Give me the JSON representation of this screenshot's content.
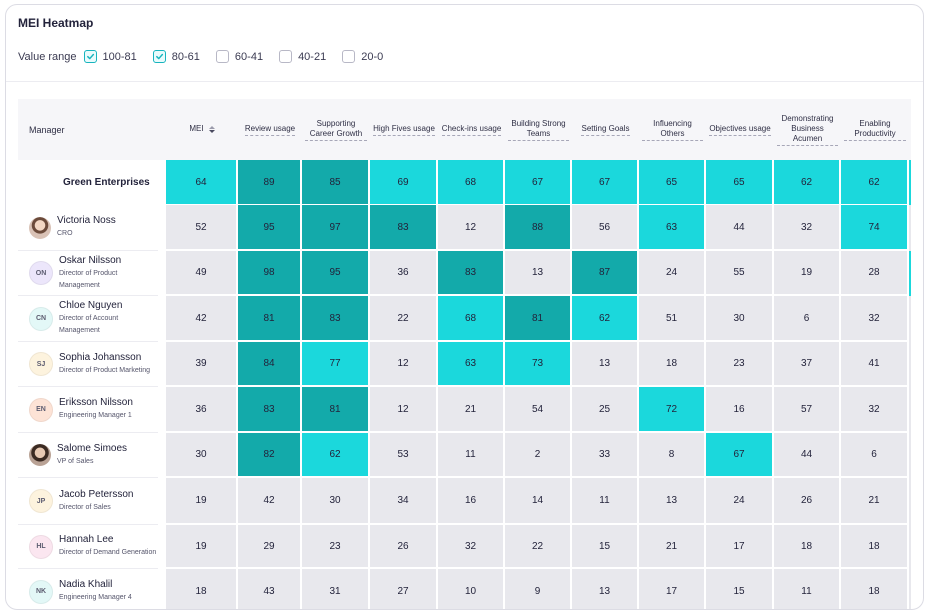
{
  "title": "MEI Heatmap",
  "filters": {
    "label": "Value range",
    "options": [
      {
        "label": "100-81",
        "checked": true
      },
      {
        "label": "80-61",
        "checked": true
      },
      {
        "label": "60-41",
        "checked": false
      },
      {
        "label": "40-21",
        "checked": false
      },
      {
        "label": "20-0",
        "checked": false
      }
    ]
  },
  "colors": {
    "low": "#e8e8ed",
    "mid": "#1bd8dc",
    "high": "#13aaaa",
    "checkbox_accent": "#17b4be"
  },
  "table": {
    "manager_header": "Manager",
    "columns": [
      "MEI",
      "Review usage",
      "Supporting Career Growth",
      "High Fives usage",
      "Check-ins usage",
      "Building Strong Teams",
      "Setting Goals",
      "Influencing Others",
      "Objectives usage",
      "Demonstrating Business Acumen",
      "Enabling Productivity"
    ],
    "rows": [
      {
        "name": "Green Enterprises",
        "role": "",
        "initials": "",
        "avatar": "none",
        "avatar_color": "",
        "values": [
          64,
          89,
          85,
          69,
          68,
          67,
          67,
          65,
          65,
          62,
          62
        ],
        "edge": "mid"
      },
      {
        "name": "Victoria Noss",
        "role": "CRO",
        "initials": "",
        "avatar": "photo",
        "avatar_color": "",
        "values": [
          52,
          95,
          97,
          83,
          12,
          88,
          56,
          63,
          44,
          32,
          74
        ],
        "edge": "low"
      },
      {
        "name": "Oskar Nilsson",
        "role": "Director of Product Management",
        "initials": "ON",
        "avatar": "initials",
        "avatar_color": "#ece6fb",
        "values": [
          49,
          98,
          95,
          36,
          83,
          13,
          87,
          24,
          55,
          19,
          28
        ],
        "edge": "mid"
      },
      {
        "name": "Chloe Nguyen",
        "role": "Director of Account Management",
        "initials": "CN",
        "avatar": "initials",
        "avatar_color": "#e3f8f7",
        "values": [
          42,
          81,
          83,
          22,
          68,
          81,
          62,
          51,
          30,
          6,
          32
        ],
        "edge": "low"
      },
      {
        "name": "Sophia Johansson",
        "role": "Director of Product Marketing",
        "initials": "SJ",
        "avatar": "initials",
        "avatar_color": "#fdf3de",
        "values": [
          39,
          84,
          77,
          12,
          63,
          73,
          13,
          18,
          23,
          37,
          41
        ],
        "edge": "low"
      },
      {
        "name": "Eriksson Nilsson",
        "role": "Engineering Manager 1",
        "initials": "EN",
        "avatar": "initials",
        "avatar_color": "#fde3d6",
        "values": [
          36,
          83,
          81,
          12,
          21,
          54,
          25,
          72,
          16,
          57,
          32
        ],
        "edge": "low"
      },
      {
        "name": "Salome Simoes",
        "role": "VP of Sales",
        "initials": "",
        "avatar": "photo2",
        "avatar_color": "",
        "values": [
          30,
          82,
          62,
          53,
          11,
          2,
          33,
          8,
          67,
          44,
          6
        ],
        "edge": "low"
      },
      {
        "name": "Jacob Petersson",
        "role": "Director of Sales",
        "initials": "JP",
        "avatar": "initials",
        "avatar_color": "#fdf3de",
        "values": [
          19,
          42,
          30,
          34,
          16,
          14,
          11,
          13,
          24,
          26,
          21
        ],
        "edge": "low"
      },
      {
        "name": "Hannah Lee",
        "role": "Director of Demand Generation",
        "initials": "HL",
        "avatar": "initials",
        "avatar_color": "#fbe6f0",
        "values": [
          19,
          29,
          23,
          26,
          32,
          22,
          15,
          21,
          17,
          18,
          18
        ],
        "edge": "low"
      },
      {
        "name": "Nadia Khalil",
        "role": "Engineering Manager 4",
        "initials": "NK",
        "avatar": "initials",
        "avatar_color": "#e3f8f7",
        "values": [
          18,
          43,
          31,
          27,
          10,
          9,
          13,
          17,
          15,
          11,
          18
        ],
        "edge": "low"
      }
    ]
  }
}
